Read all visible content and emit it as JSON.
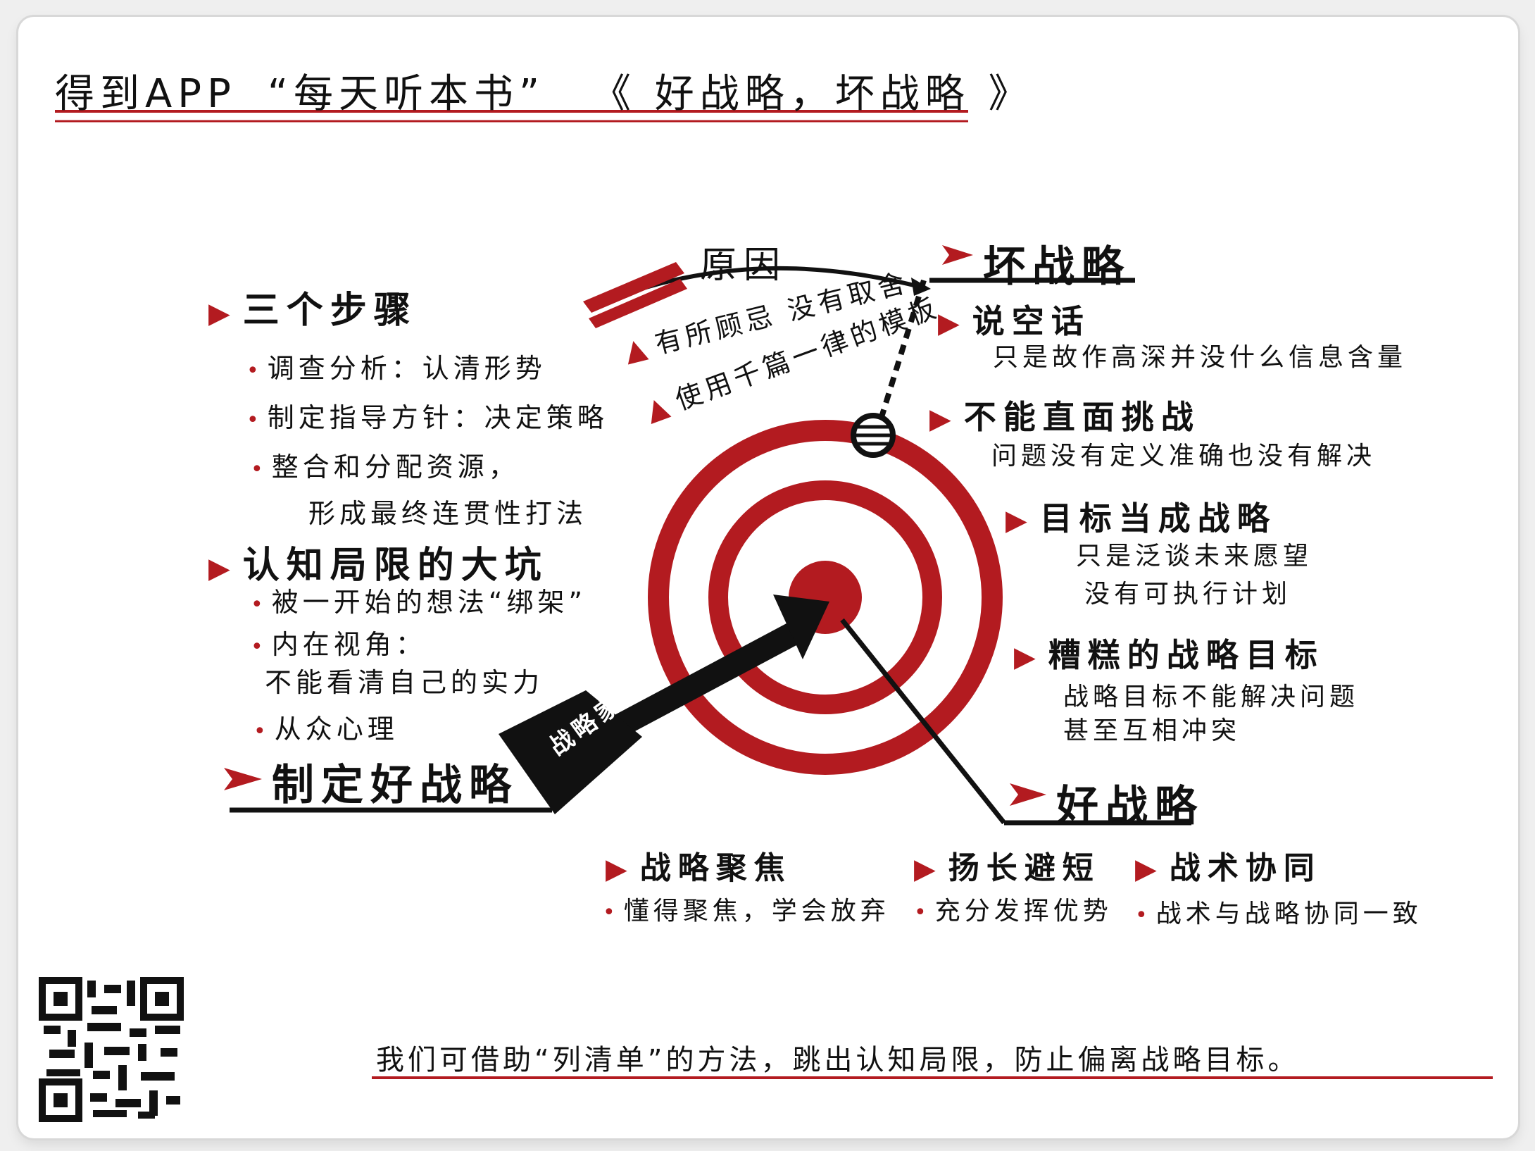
{
  "header": {
    "app": "得到APP",
    "series": "“每天听本书”",
    "book": "《 好战略，坏战略 》"
  },
  "left": {
    "steps_title": "三个步骤",
    "steps": [
      "调查分析：认清形势",
      "制定指导方针：决定策略",
      "整合和分配资源，"
    ],
    "steps_cont": "形成最终连贯性打法",
    "limits_title": "认知局限的大坑",
    "limits": [
      "被一开始的想法“绑架”",
      "内在视角：",
      "从众心理"
    ],
    "limits_cont": "不能看清自己的实力",
    "make_good": "制定好战略"
  },
  "arrow_label": "战略家",
  "cause": {
    "title": "原因",
    "items": [
      "有所顾忌 没有取舍",
      "使用千篇一律的模板"
    ]
  },
  "bad": {
    "title": "坏战略",
    "items": [
      {
        "head": "说空话",
        "desc": [
          "只是故作高深并没什么信息含量"
        ]
      },
      {
        "head": "不能直面挑战",
        "desc": [
          "问题没有定义准确也没有解决"
        ]
      },
      {
        "head": "目标当成战略",
        "desc": [
          "只是泛谈未来愿望",
          "没有可执行计划"
        ]
      },
      {
        "head": "糟糕的战略目标",
        "desc": [
          "战略目标不能解决问题",
          "甚至互相冲突"
        ]
      }
    ]
  },
  "good": {
    "title": "好战略",
    "items": [
      {
        "head": "战略聚焦",
        "desc": "懂得聚焦，学会放弃"
      },
      {
        "head": "扬长避短",
        "desc": "充分发挥优势"
      },
      {
        "head": "战术协同",
        "desc": "战术与战略协同一致"
      }
    ]
  },
  "footer": "我们可借助“列清单”的方法，跳出认知局限，防止偏离战略目标。",
  "colors": {
    "accent": "#b31b20",
    "ink": "#111111"
  }
}
